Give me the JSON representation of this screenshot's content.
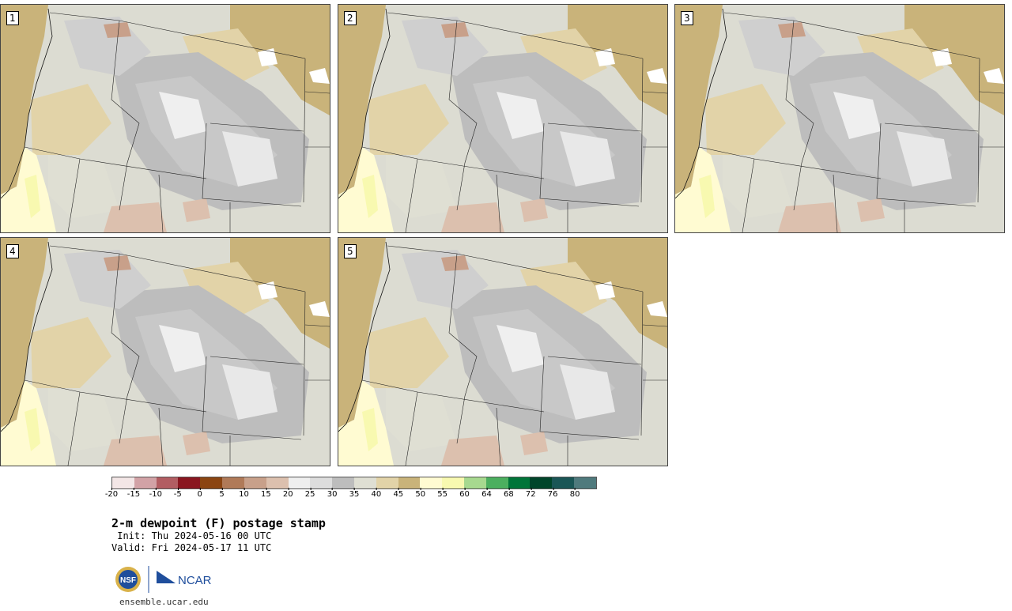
{
  "panels": [
    {
      "label": "1"
    },
    {
      "label": "2"
    },
    {
      "label": "3"
    },
    {
      "label": "4"
    },
    {
      "label": "5"
    }
  ],
  "legend": {
    "colors": [
      "#f3e6e6",
      "#d2a2a6",
      "#b25d62",
      "#8a1620",
      "#8b4512",
      "#b07a58",
      "#c8a08a",
      "#dcc0ae",
      "#efefef",
      "#dddddd",
      "#bdbdbd",
      "#dfdfd3",
      "#e2d3a8",
      "#c9b37a",
      "#fffbd2",
      "#f8f9b0",
      "#a7d98f",
      "#4caf5f",
      "#007539",
      "#00452a",
      "#1a5656",
      "#4f7a7d"
    ],
    "ticks": [
      "-20",
      "-15",
      "-10",
      "-5",
      "0",
      "5",
      "10",
      "15",
      "20",
      "25",
      "30",
      "35",
      "40",
      "45",
      "50",
      "55",
      "60",
      "64",
      "68",
      "72",
      "76",
      "80"
    ]
  },
  "title": "2-m dewpoint (F) postage stamp",
  "init": " Init: Thu 2024-05-16 00 UTC",
  "valid": "Valid: Fri 2024-05-17 11 UTC",
  "logos": {
    "nsf": "NSF",
    "ncar": "NCAR"
  },
  "website": "ensemble.ucar.edu"
}
